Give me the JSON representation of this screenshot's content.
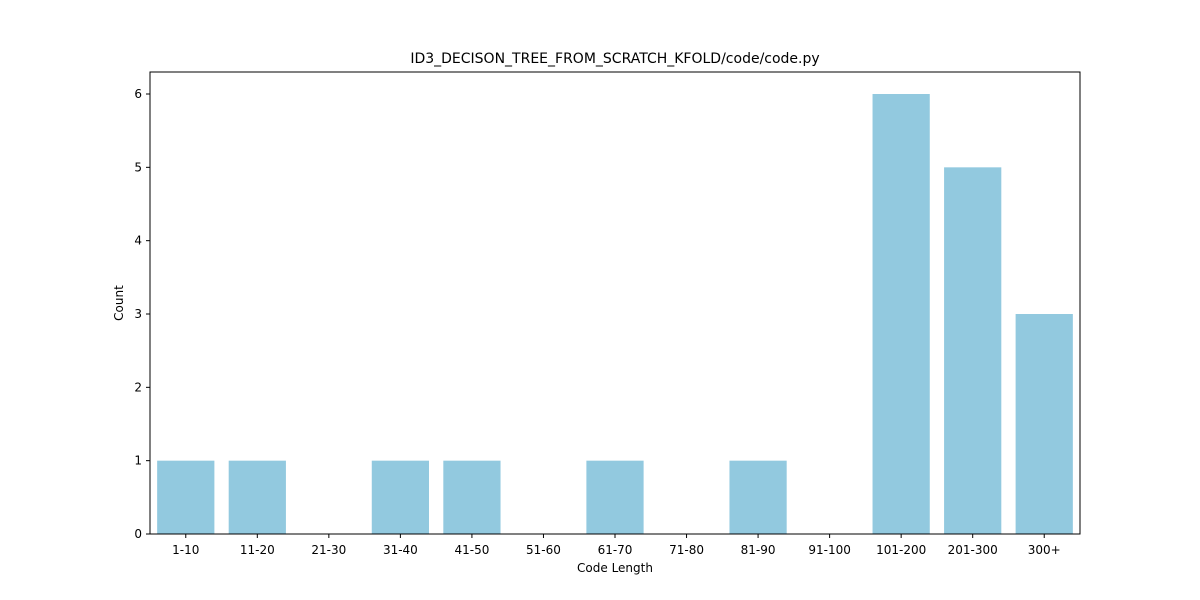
{
  "chart_data": {
    "type": "bar",
    "title": "ID3_DECISON_TREE_FROM_SCRATCH_KFOLD/code/code.py",
    "xlabel": "Code Length",
    "ylabel": "Count",
    "categories": [
      "1-10",
      "11-20",
      "21-30",
      "31-40",
      "41-50",
      "51-60",
      "61-70",
      "71-80",
      "81-90",
      "91-100",
      "101-200",
      "201-300",
      "300+"
    ],
    "values": [
      1,
      1,
      0,
      1,
      1,
      0,
      1,
      0,
      1,
      0,
      6,
      5,
      3
    ],
    "ylim": [
      0,
      6.3
    ],
    "yticks": [
      0,
      1,
      2,
      3,
      4,
      5,
      6
    ],
    "bar_color": "#92c9df",
    "grid": false,
    "legend": "none"
  }
}
